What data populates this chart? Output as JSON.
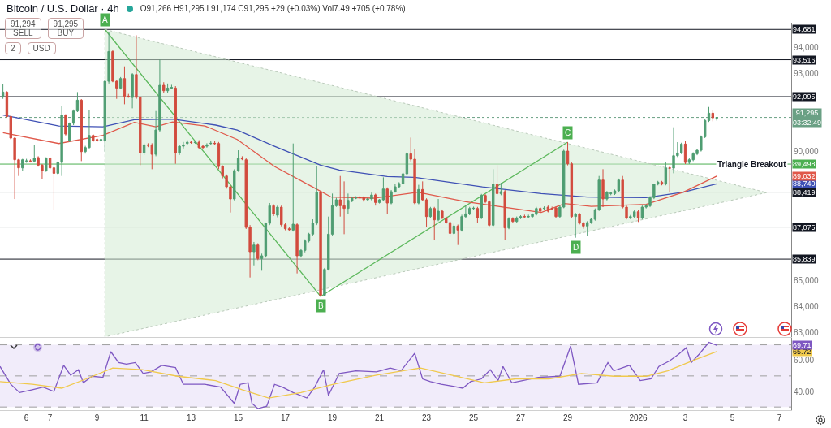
{
  "chart_data": [
    {
      "type": "candlestick",
      "title": "Bitcoin / U.S. Dollar · 4h",
      "subtitle": "O91,266 H91,295 L91,174 C91,295 +29 (+0.03%) Vol7.49 +705 (+0.78%)",
      "tick_labels": "y",
      "xlim": [
        "2025-12-04T21:00",
        "2026-01-07T12:00"
      ],
      "ylim": [
        82840,
        94940
      ],
      "yticks": [
        {
          "value": 83000,
          "label": "83,000"
        },
        {
          "value": 84000,
          "label": "84,000"
        },
        {
          "value": 85000,
          "label": "85,000"
        },
        {
          "value": 90000,
          "label": "90,000"
        },
        {
          "value": 93000,
          "label": "93,000"
        },
        {
          "value": 94000,
          "label": "94,000"
        }
      ],
      "x": [
        "2025-12-05T00:00",
        "2025-12-05T04:00",
        "2025-12-05T08:00",
        "2025-12-05T12:00",
        "2025-12-05T16:00",
        "2025-12-05T20:00",
        "2025-12-06T00:00",
        "2025-12-06T04:00",
        "2025-12-06T08:00",
        "2025-12-06T12:00",
        "2025-12-06T16:00",
        "2025-12-06T20:00",
        "2025-12-07T00:00",
        "2025-12-07T04:00",
        "2025-12-07T08:00",
        "2025-12-07T12:00",
        "2025-12-07T16:00",
        "2025-12-07T20:00",
        "2025-12-08T00:00",
        "2025-12-08T04:00",
        "2025-12-08T08:00",
        "2025-12-08T12:00",
        "2025-12-08T16:00",
        "2025-12-08T20:00",
        "2025-12-09T00:00",
        "2025-12-09T04:00",
        "2025-12-09T08:00",
        "2025-12-09T12:00",
        "2025-12-09T16:00",
        "2025-12-09T20:00",
        "2025-12-10T00:00",
        "2025-12-10T04:00",
        "2025-12-10T08:00",
        "2025-12-10T12:00",
        "2025-12-10T16:00",
        "2025-12-10T20:00",
        "2025-12-11T00:00",
        "2025-12-11T04:00",
        "2025-12-11T08:00",
        "2025-12-11T12:00",
        "2025-12-11T16:00",
        "2025-12-11T20:00",
        "2025-12-12T00:00",
        "2025-12-12T04:00",
        "2025-12-12T08:00",
        "2025-12-12T12:00",
        "2025-12-12T16:00",
        "2025-12-12T20:00",
        "2025-12-13T00:00",
        "2025-12-13T04:00",
        "2025-12-13T08:00",
        "2025-12-13T12:00",
        "2025-12-13T16:00",
        "2025-12-13T20:00",
        "2025-12-14T00:00",
        "2025-12-14T04:00",
        "2025-12-14T08:00",
        "2025-12-14T12:00",
        "2025-12-14T16:00",
        "2025-12-14T20:00",
        "2025-12-15T00:00",
        "2025-12-15T04:00",
        "2025-12-15T08:00",
        "2025-12-15T12:00",
        "2025-12-15T16:00",
        "2025-12-15T20:00",
        "2025-12-16T00:00",
        "2025-12-16T04:00",
        "2025-12-16T08:00",
        "2025-12-16T12:00",
        "2025-12-16T16:00",
        "2025-12-16T20:00",
        "2025-12-17T00:00",
        "2025-12-17T04:00",
        "2025-12-17T08:00",
        "2025-12-17T12:00",
        "2025-12-17T16:00",
        "2025-12-17T20:00",
        "2025-12-18T00:00",
        "2025-12-18T04:00",
        "2025-12-18T08:00",
        "2025-12-18T12:00",
        "2025-12-18T16:00",
        "2025-12-18T20:00",
        "2025-12-19T00:00",
        "2025-12-19T04:00",
        "2025-12-19T08:00",
        "2025-12-19T12:00",
        "2025-12-19T16:00",
        "2025-12-19T20:00",
        "2025-12-20T00:00",
        "2025-12-20T04:00",
        "2025-12-20T08:00",
        "2025-12-20T12:00",
        "2025-12-20T16:00",
        "2025-12-20T20:00",
        "2025-12-21T00:00",
        "2025-12-21T04:00",
        "2025-12-21T08:00",
        "2025-12-21T12:00",
        "2025-12-21T16:00",
        "2025-12-21T20:00",
        "2025-12-22T00:00",
        "2025-12-22T04:00",
        "2025-12-22T08:00",
        "2025-12-22T12:00",
        "2025-12-22T16:00",
        "2025-12-22T20:00",
        "2025-12-23T00:00",
        "2025-12-23T04:00",
        "2025-12-23T08:00",
        "2025-12-23T12:00",
        "2025-12-23T16:00",
        "2025-12-23T20:00",
        "2025-12-24T00:00",
        "2025-12-24T04:00",
        "2025-12-24T08:00",
        "2025-12-24T12:00",
        "2025-12-24T16:00",
        "2025-12-24T20:00",
        "2025-12-25T00:00",
        "2025-12-25T04:00",
        "2025-12-25T08:00",
        "2025-12-25T12:00",
        "2025-12-25T16:00",
        "2025-12-25T20:00",
        "2025-12-26T00:00",
        "2025-12-26T04:00",
        "2025-12-26T08:00",
        "2025-12-26T12:00",
        "2025-12-26T16:00",
        "2025-12-26T20:00",
        "2025-12-27T00:00",
        "2025-12-27T04:00",
        "2025-12-27T08:00",
        "2025-12-27T12:00",
        "2025-12-27T16:00",
        "2025-12-27T20:00",
        "2025-12-28T00:00",
        "2025-12-28T04:00",
        "2025-12-28T08:00",
        "2025-12-28T12:00",
        "2025-12-28T16:00",
        "2025-12-28T20:00",
        "2025-12-29T00:00",
        "2025-12-29T04:00",
        "2025-12-29T08:00",
        "2025-12-29T12:00",
        "2025-12-29T16:00",
        "2025-12-29T20:00",
        "2025-12-30T00:00",
        "2025-12-30T04:00",
        "2025-12-30T08:00",
        "2025-12-30T12:00",
        "2025-12-30T16:00",
        "2025-12-30T20:00",
        "2025-12-31T00:00",
        "2025-12-31T04:00",
        "2025-12-31T08:00",
        "2025-12-31T12:00",
        "2025-12-31T16:00",
        "2025-12-31T20:00",
        "2026-01-01T00:00",
        "2026-01-01T04:00",
        "2026-01-01T08:00",
        "2026-01-01T12:00",
        "2026-01-01T16:00",
        "2026-01-01T20:00",
        "2026-01-02T00:00",
        "2026-01-02T04:00",
        "2026-01-02T08:00",
        "2026-01-02T12:00",
        "2026-01-02T16:00",
        "2026-01-02T20:00",
        "2026-01-03T00:00",
        "2026-01-03T04:00",
        "2026-01-03T08:00",
        "2026-01-03T12:00",
        "2026-01-03T16:00",
        "2026-01-03T20:00",
        "2026-01-04T00:00",
        "2026-01-04T04:00",
        "2026-01-04T08:00"
      ],
      "ohlc": [
        [
          92114,
          92583,
          92010,
          92270
        ],
        [
          92270,
          92300,
          91300,
          91332
        ],
        [
          91332,
          91350,
          90450,
          90499
        ],
        [
          90499,
          90520,
          88154,
          89665
        ],
        [
          89665,
          89700,
          89040,
          89352
        ],
        [
          89352,
          89700,
          89250,
          89665
        ],
        [
          89613,
          89700,
          89550,
          89620
        ],
        [
          89620,
          89680,
          89560,
          89613
        ],
        [
          89613,
          90238,
          89560,
          89717
        ],
        [
          89748,
          89800,
          89400,
          89457
        ],
        [
          89457,
          89500,
          88935,
          89248
        ],
        [
          89248,
          89760,
          89200,
          89717
        ],
        [
          89717,
          89760,
          89300,
          89352
        ],
        [
          89352,
          89400,
          87737,
          89144
        ],
        [
          89144,
          89600,
          89100,
          89561
        ],
        [
          89561,
          91749,
          89040,
          91384
        ],
        [
          91384,
          91420,
          90600,
          90655
        ],
        [
          90395,
          91100,
          90350,
          91072
        ],
        [
          91072,
          91600,
          91000,
          91541
        ],
        [
          91541,
          92270,
          91500,
          91958
        ],
        [
          91958,
          92000,
          89613,
          89977
        ],
        [
          89977,
          90200,
          89900,
          90134
        ],
        [
          90134,
          91593,
          90100,
          90603
        ],
        [
          90603,
          90650,
          90350,
          90395
        ],
        [
          90447,
          90500,
          90350,
          90395
        ],
        [
          90395,
          90480,
          90350,
          90447
        ],
        [
          90395,
          92750,
          89977,
          92687
        ],
        [
          92687,
          94562,
          92600,
          93833
        ],
        [
          93833,
          93900,
          92650,
          92687
        ],
        [
          92687,
          92750,
          92010,
          92426
        ],
        [
          92426,
          92850,
          92380,
          92791
        ],
        [
          92791,
          93260,
          91801,
          92114
        ],
        [
          92114,
          92200,
          92050,
          92100
        ],
        [
          92062,
          93000,
          91645,
          92947
        ],
        [
          92947,
          94458,
          92000,
          92062
        ],
        [
          92062,
          92100,
          89457,
          89925
        ],
        [
          89925,
          90300,
          89850,
          90238
        ],
        [
          90238,
          90300,
          90150,
          90220
        ],
        [
          90238,
          90300,
          89300,
          89873
        ],
        [
          89873,
          91541,
          89800,
          90811
        ],
        [
          90811,
          93520,
          90750,
          92531
        ],
        [
          92531,
          92650,
          92250,
          92322
        ],
        [
          92322,
          92600,
          92250,
          92426
        ],
        [
          92426,
          92550,
          92380,
          92447
        ],
        [
          92426,
          92500,
          89509,
          89925
        ],
        [
          89925,
          90250,
          89850,
          90186
        ],
        [
          90186,
          90350,
          90100,
          90238
        ],
        [
          90290,
          90420,
          90230,
          90342
        ],
        [
          90342,
          90400,
          90280,
          90330
        ],
        [
          90330,
          90400,
          90280,
          90342
        ],
        [
          90342,
          90420,
          90080,
          90134
        ],
        [
          90186,
          90250,
          90080,
          90134
        ],
        [
          90186,
          90300,
          90130,
          90238
        ],
        [
          90290,
          90380,
          90230,
          90300
        ],
        [
          90300,
          90380,
          90230,
          90290
        ],
        [
          90290,
          90350,
          89300,
          89405
        ],
        [
          89405,
          89450,
          88950,
          89040
        ],
        [
          89040,
          89100,
          88550,
          88623
        ],
        [
          88623,
          88680,
          87633,
          88154
        ],
        [
          88154,
          89300,
          88100,
          89248
        ],
        [
          89248,
          90030,
          89200,
          89717
        ],
        [
          89717,
          89800,
          89650,
          89700
        ],
        [
          89665,
          89720,
          87000,
          87060
        ],
        [
          87060,
          87150,
          85132,
          86122
        ],
        [
          86122,
          86500,
          85600,
          86383
        ],
        [
          86383,
          86450,
          85800,
          85862
        ],
        [
          85862,
          86050,
          85393,
          85966
        ],
        [
          85966,
          87250,
          85900,
          87216
        ],
        [
          87216,
          88000,
          87150,
          87893
        ],
        [
          87893,
          87950,
          87500,
          87581
        ],
        [
          87529,
          87900,
          87450,
          87842
        ],
        [
          87842,
          87900,
          87100,
          87165
        ],
        [
          87165,
          87220,
          86950,
          87008
        ],
        [
          87008,
          87060,
          86930,
          86977
        ],
        [
          86956,
          90291,
          86900,
          87185
        ],
        [
          87165,
          87220,
          85289,
          85967
        ],
        [
          85967,
          86250,
          85900,
          86175
        ],
        [
          86175,
          86600,
          86100,
          86540
        ],
        [
          86540,
          86850,
          86480,
          86800
        ],
        [
          86800,
          87373,
          86750,
          87217
        ],
        [
          87217,
          89405,
          87150,
          88415
        ],
        [
          88415,
          88450,
          84404,
          84450
        ],
        [
          84450,
          85500,
          84404,
          85446
        ],
        [
          85446,
          87477,
          85400,
          86800
        ],
        [
          86800,
          88363,
          86750,
          87894
        ],
        [
          87894,
          88200,
          87850,
          88123
        ],
        [
          88123,
          89040,
          87477,
          87894
        ],
        [
          87894,
          88832,
          86800,
          87790
        ],
        [
          87790,
          88363,
          87581,
          88102
        ],
        [
          88081,
          88250,
          88030,
          88186
        ],
        [
          88186,
          88260,
          88150,
          88207
        ],
        [
          88207,
          88280,
          88150,
          88200
        ],
        [
          88207,
          88260,
          88050,
          88123
        ],
        [
          88123,
          88200,
          88080,
          88155
        ],
        [
          88155,
          88400,
          88100,
          88311
        ],
        [
          88311,
          88360,
          87900,
          88019
        ],
        [
          88019,
          88150,
          87980,
          88123
        ],
        [
          88123,
          88988,
          88080,
          88540
        ],
        [
          88540,
          88600,
          87581,
          87998
        ],
        [
          87998,
          88500,
          87950,
          88436
        ],
        [
          88436,
          88728,
          88400,
          88623
        ],
        [
          88623,
          88800,
          88580,
          88749
        ],
        [
          88749,
          89200,
          88700,
          89124
        ],
        [
          89124,
          89950,
          89080,
          89895
        ],
        [
          89895,
          90520,
          89600,
          89687
        ],
        [
          89687,
          90082,
          87950,
          87998
        ],
        [
          87998,
          88700,
          87950,
          88519
        ],
        [
          88519,
          88832,
          88080,
          88123
        ],
        [
          88123,
          88180,
          87060,
          87477
        ],
        [
          87477,
          87850,
          87420,
          87790
        ],
        [
          87790,
          87850,
          86592,
          87352
        ],
        [
          87352,
          88155,
          87300,
          87686
        ],
        [
          87686,
          87750,
          87380,
          87425
        ],
        [
          87425,
          87480,
          87200,
          87248
        ],
        [
          87248,
          87300,
          86696,
          86831
        ],
        [
          86831,
          87200,
          86780,
          87112
        ],
        [
          87112,
          87170,
          86383,
          86956
        ],
        [
          86956,
          87550,
          86900,
          87477
        ],
        [
          87477,
          87894,
          87420,
          87581
        ],
        [
          87581,
          87850,
          87530,
          87790
        ],
        [
          87790,
          87860,
          87720,
          87800
        ],
        [
          87790,
          87850,
          87217,
          87425
        ],
        [
          87425,
          88350,
          87380,
          88290
        ],
        [
          88290,
          88340,
          87990,
          88050
        ],
        [
          88050,
          88100,
          87100,
          87144
        ],
        [
          87144,
          89301,
          87100,
          88728
        ],
        [
          88728,
          89457,
          88300,
          88363
        ],
        [
          88363,
          88780,
          88300,
          88436
        ],
        [
          88436,
          88500,
          86592,
          87040
        ],
        [
          87040,
          87450,
          86990,
          87394
        ],
        [
          87394,
          87450,
          87230,
          87290
        ],
        [
          87290,
          87480,
          87240,
          87425
        ],
        [
          87425,
          87530,
          87380,
          87477
        ],
        [
          87477,
          87550,
          87420,
          87470
        ],
        [
          87470,
          87550,
          87420,
          87477
        ],
        [
          87477,
          87600,
          87430,
          87561
        ],
        [
          87561,
          87850,
          87520,
          87790
        ],
        [
          87790,
          87840,
          87620,
          87686
        ],
        [
          87790,
          87870,
          87720,
          87800
        ],
        [
          87842,
          87900,
          87640,
          87686
        ],
        [
          87790,
          87860,
          87720,
          87780
        ],
        [
          87811,
          87860,
          87430,
          87477
        ],
        [
          87477,
          87900,
          87430,
          87842
        ],
        [
          87842,
          90050,
          87800,
          89999
        ],
        [
          89999,
          90343,
          89450,
          89509
        ],
        [
          89509,
          89560,
          87430,
          87477
        ],
        [
          87477,
          87620,
          86664,
          87561
        ],
        [
          87561,
          87620,
          87170,
          87217
        ],
        [
          87217,
          87270,
          87008,
          87112
        ],
        [
          87112,
          87300,
          86748,
          87248
        ],
        [
          87248,
          87420,
          87200,
          87373
        ],
        [
          87373,
          87790,
          87320,
          87738
        ],
        [
          87738,
          89040,
          87690,
          88884
        ],
        [
          88884,
          89301,
          87842,
          88155
        ],
        [
          88155,
          88460,
          88100,
          88415
        ],
        [
          88363,
          88430,
          88300,
          88380
        ],
        [
          88363,
          88520,
          88310,
          88467
        ],
        [
          88467,
          88940,
          88420,
          88884
        ],
        [
          88884,
          89040,
          87790,
          87842
        ],
        [
          87842,
          87900,
          87370,
          87425
        ],
        [
          87425,
          87540,
          87373,
          87477
        ],
        [
          87477,
          87720,
          87420,
          87665
        ],
        [
          87665,
          87720,
          87269,
          87425
        ],
        [
          87425,
          87900,
          87370,
          87842
        ],
        [
          87842,
          87950,
          87790,
          87894
        ],
        [
          87894,
          88260,
          87840,
          88207
        ],
        [
          88207,
          88748,
          88150,
          88728
        ],
        [
          88728,
          88850,
          88680,
          88800
        ],
        [
          88800,
          88850,
          88680,
          88728
        ],
        [
          88728,
          89561,
          88680,
          89353
        ],
        [
          89353,
          89420,
          88415,
          89340
        ],
        [
          89340,
          90916,
          89144,
          89821
        ],
        [
          89821,
          90343,
          89770,
          89926
        ],
        [
          89926,
          90320,
          89880,
          90270
        ],
        [
          90270,
          90395,
          89500,
          89561
        ],
        [
          89561,
          89720,
          89500,
          89665
        ],
        [
          89665,
          89950,
          89610,
          89895
        ],
        [
          89895,
          90080,
          89840,
          90030
        ],
        [
          90030,
          90600,
          89980,
          90551
        ],
        [
          90551,
          91220,
          90500,
          91176
        ],
        [
          91176,
          91697,
          91120,
          91458
        ],
        [
          91458,
          91562,
          91145,
          91280
        ],
        [
          91266,
          91295,
          91174,
          91295
        ]
      ],
      "series": [
        {
          "type": "area",
          "color": "#d4ebd3",
          "line_style": "dotted",
          "x": [
            "2025-12-09T08:00",
            "2026-01-06T11:00",
            "2025-12-09T08:00",
            "2025-12-09T08:00"
          ],
          "values": [
            94681,
            88400,
            82850,
            94681
          ]
        },
        {
          "type": "line",
          "color": "#5cb85c",
          "x": [
            "2025-12-09T08:00",
            "2025-12-18T12:00",
            "2025-12-29T00:00"
          ],
          "values": [
            94681,
            84404,
            90343
          ]
        },
        {
          "type": "line",
          "color": "#3f51b5",
          "x": [
            "2025-12-05T00:00",
            "2025-12-07T09:00",
            "2025-12-09T06:00",
            "2025-12-10T14:00",
            "2025-12-12T05:00",
            "2025-12-14T01:00",
            "2025-12-14T23:00",
            "2025-12-16T13:00",
            "2025-12-18T12:00",
            "2025-12-19T07:00",
            "2025-12-21T08:00",
            "2025-12-22T12:00",
            "2025-12-25T09:00",
            "2025-12-27T21:00",
            "2025-12-29T20:00",
            "2026-01-01T08:00",
            "2026-01-02T22:00",
            "2026-01-04T08:00"
          ],
          "values": [
            91384,
            90968,
            90936,
            91207,
            91228,
            91000,
            90811,
            90186,
            89457,
            89270,
            89019,
            88988,
            88623,
            88363,
            88227,
            88207,
            88415,
            88740
          ]
        },
        {
          "type": "line",
          "color": "#e0584a",
          "x": [
            "2025-12-05T00:00",
            "2025-12-07T09:00",
            "2025-12-09T06:00",
            "2025-12-10T14:00",
            "2025-12-11T12:00",
            "2025-12-12T05:00",
            "2025-12-13T14:00",
            "2025-12-14T23:00",
            "2025-12-16T13:00",
            "2025-12-18T06:00",
            "2025-12-18T23:00",
            "2025-12-20T18:00",
            "2025-12-22T15:00",
            "2025-12-24T16:00",
            "2025-12-27T21:00",
            "2025-12-28T21:00",
            "2025-12-30T00:00",
            "2026-01-01T08:00",
            "2026-01-02T22:00",
            "2026-01-04T08:00"
          ],
          "values": [
            90707,
            90290,
            90603,
            91103,
            90936,
            91124,
            90968,
            90447,
            89405,
            88572,
            88227,
            88186,
            88415,
            88050,
            87634,
            87977,
            87873,
            87946,
            88415,
            89032
          ]
        }
      ],
      "ref_lines": [
        {
          "axis": "y",
          "value": 94681,
          "color": "#131722"
        },
        {
          "axis": "y",
          "value": 93516,
          "color": "#131722"
        },
        {
          "axis": "y",
          "value": 92095,
          "color": "#131722"
        },
        {
          "axis": "y",
          "value": 91295,
          "color": "#6aa084",
          "line_style": "dotted"
        },
        {
          "axis": "y",
          "value": 89498,
          "color": "#4caf50",
          "label": "Triangle Breakout"
        },
        {
          "axis": "y",
          "value": 88419,
          "color": "#131722"
        },
        {
          "axis": "y",
          "value": 87075,
          "color": "#131722"
        },
        {
          "axis": "y",
          "value": 85839,
          "color": "#131722"
        }
      ],
      "annotations": [
        "91,294\nSELL",
        "91,295\nBUY",
        "2",
        "USD",
        {
          "text": "A",
          "x": "2025-12-09T08:00",
          "y": 94681
        },
        {
          "text": "B",
          "x": "2025-12-18T12:00",
          "y": 84404
        },
        {
          "text": "C",
          "x": "2025-12-29T00:00",
          "y": 90343
        },
        {
          "text": "D",
          "x": "2025-12-29T08:00",
          "y": 86664
        },
        {
          "text": "94,681",
          "y": 94681
        },
        {
          "text": "93,516",
          "y": 93516
        },
        {
          "text": "92,095",
          "y": 92095
        },
        {
          "text": "91,295\n03:32:49",
          "y": 91295
        },
        {
          "text": "89,498",
          "y": 89498
        },
        {
          "text": "89,032",
          "y": 89032
        },
        {
          "text": "88,740",
          "y": 88740
        },
        {
          "text": "88,419",
          "y": 88419
        },
        {
          "text": "87,075",
          "y": 87075
        },
        {
          "text": "85,839",
          "y": 85839
        }
      ]
    },
    {
      "type": "line",
      "xlim": [
        "2025-12-04T21:00",
        "2026-01-07T12:00"
      ],
      "ylim": [
        28,
        75
      ],
      "xticks": [
        {
          "value": "2025-12-06",
          "label": "6"
        },
        {
          "value": "2025-12-07",
          "label": "7"
        },
        {
          "value": "2025-12-09",
          "label": "9"
        },
        {
          "value": "2025-12-11",
          "label": "11"
        },
        {
          "value": "2025-12-13",
          "label": "13"
        },
        {
          "value": "2025-12-15",
          "label": "15"
        },
        {
          "value": "2025-12-17",
          "label": "17"
        },
        {
          "value": "2025-12-19",
          "label": "19"
        },
        {
          "value": "2025-12-21",
          "label": "21"
        },
        {
          "value": "2025-12-23",
          "label": "23"
        },
        {
          "value": "2025-12-25",
          "label": "25"
        },
        {
          "value": "2025-12-27",
          "label": "27"
        },
        {
          "value": "2025-12-29",
          "label": "29"
        },
        {
          "value": "2026-01-01",
          "label": "2026"
        },
        {
          "value": "2026-01-03",
          "label": "3"
        },
        {
          "value": "2026-01-05",
          "label": "5"
        },
        {
          "value": "2026-01-07",
          "label": "7"
        }
      ],
      "yticks": [
        {
          "value": 40,
          "label": "40.00"
        },
        {
          "value": 60,
          "label": "60.00"
        }
      ],
      "series": [
        {
          "color": "#7e57c2",
          "x": [
            "2025-12-04T21:00",
            "2025-12-05T08:00",
            "2025-12-05T17:00",
            "2025-12-06T06:00",
            "2025-12-06T17:00",
            "2025-12-07T04:00",
            "2025-12-07T14:00",
            "2025-12-07T21:00",
            "2025-12-08T05:00",
            "2025-12-08T10:00",
            "2025-12-08T19:00",
            "2025-12-09T06:00",
            "2025-12-09T14:00",
            "2025-12-09T22:00",
            "2025-12-10T06:00",
            "2025-12-10T15:00",
            "2025-12-10T23:00",
            "2025-12-11T07:00",
            "2025-12-11T18:00",
            "2025-12-12T08:00",
            "2025-12-12T16:00",
            "2025-12-13T14:00",
            "2025-12-14T06:00",
            "2025-12-14T20:00",
            "2025-12-15T02:00",
            "2025-12-15T10:00",
            "2025-12-15T14:00",
            "2025-12-15T20:00",
            "2025-12-16T05:00",
            "2025-12-16T13:00",
            "2025-12-16T21:00",
            "2025-12-17T08:00",
            "2025-12-17T22:00",
            "2025-12-18T06:00",
            "2025-12-18T15:00",
            "2025-12-18T20:00",
            "2025-12-19T07:00",
            "2025-12-20T00:00",
            "2025-12-20T21:00",
            "2025-12-21T11:00",
            "2025-12-21T22:00",
            "2025-12-22T12:00",
            "2025-12-22T20:00",
            "2025-12-23T04:00",
            "2025-12-23T15:00",
            "2025-12-24T02:00",
            "2025-12-24T13:00",
            "2025-12-24T21:00",
            "2025-12-25T08:00",
            "2025-12-25T17:00",
            "2025-12-26T01:00",
            "2025-12-26T06:00",
            "2025-12-26T15:00",
            "2025-12-27T02:00",
            "2025-12-27T18:00",
            "2025-12-28T16:00",
            "2025-12-29T03:00",
            "2025-12-29T11:00",
            "2025-12-30T06:00",
            "2025-12-30T17:00",
            "2025-12-30T23:00",
            "2025-12-31T15:00",
            "2026-01-01T02:00",
            "2026-01-01T13:00",
            "2026-01-01T21:00",
            "2026-01-02T08:00",
            "2026-01-02T17:00",
            "2026-01-03T01:00",
            "2026-01-03T06:00",
            "2026-01-03T14:00",
            "2026-01-04T00:00",
            "2026-01-04T08:00"
          ],
          "values": [
            56.1,
            44.6,
            39.3,
            41.1,
            42.8,
            40.0,
            56.8,
            50.5,
            54.0,
            45.6,
            49.8,
            49.1,
            65.6,
            58.6,
            57.6,
            58.6,
            51.6,
            52.6,
            56.8,
            55.4,
            44.6,
            44.6,
            42.8,
            32.3,
            44.6,
            45.6,
            32.3,
            29.0,
            30.5,
            44.6,
            42.8,
            39.3,
            35.8,
            42.8,
            54.0,
            37.5,
            51.6,
            53.3,
            52.6,
            55.1,
            53.3,
            64.6,
            48.1,
            46.3,
            44.6,
            43.5,
            42.1,
            46.3,
            48.1,
            54.0,
            47.0,
            56.1,
            45.6,
            47.0,
            49.1,
            49.8,
            69.1,
            44.6,
            45.6,
            58.6,
            53.3,
            56.8,
            47.0,
            48.1,
            56.1,
            59.7,
            63.9,
            68.1,
            58.6,
            63.9,
            71.6,
            69.71
          ]
        },
        {
          "color": "#f0c94c",
          "x": [
            "2025-12-04T21:00",
            "2025-12-06T06:00",
            "2025-12-07T12:00",
            "2025-12-08T13:00",
            "2025-12-09T16:00",
            "2025-12-10T22:00",
            "2025-12-12T10:00",
            "2025-12-14T01:00",
            "2025-12-15T04:00",
            "2025-12-16T07:00",
            "2025-12-17T16:00",
            "2025-12-19T01:00",
            "2025-12-20T21:00",
            "2025-12-22T18:00",
            "2025-12-24T07:00",
            "2025-12-25T11:00",
            "2025-12-26T19:00",
            "2025-12-28T05:00",
            "2025-12-29T14:00",
            "2025-12-30T23:00",
            "2026-01-01T08:00",
            "2026-01-02T06:00",
            "2026-01-03T10:00",
            "2026-01-04T08:00"
          ],
          "values": [
            46.3,
            44.6,
            42.1,
            48.1,
            55.1,
            54.0,
            49.8,
            47.0,
            41.1,
            35.8,
            39.3,
            44.6,
            50.5,
            55.1,
            49.8,
            45.6,
            48.1,
            48.1,
            51.6,
            49.8,
            49.8,
            53.3,
            60.4,
            65.72
          ]
        }
      ],
      "bands": [
        {
          "axis": "y",
          "from": 30,
          "to": 70,
          "color": "#f1ecfa"
        }
      ],
      "ref_lines": [
        {
          "axis": "y",
          "value": 70,
          "color": "#9e9e9e",
          "line_style": "dashed"
        },
        {
          "axis": "y",
          "value": 50,
          "color": "#9e9e9e",
          "line_style": "dashed"
        },
        {
          "axis": "y",
          "value": 30,
          "color": "#9e9e9e",
          "line_style": "dashed"
        }
      ],
      "annotations": [
        {
          "text": "69.71",
          "y": 69.71
        },
        {
          "text": "65.72",
          "y": 65.72
        }
      ]
    }
  ]
}
